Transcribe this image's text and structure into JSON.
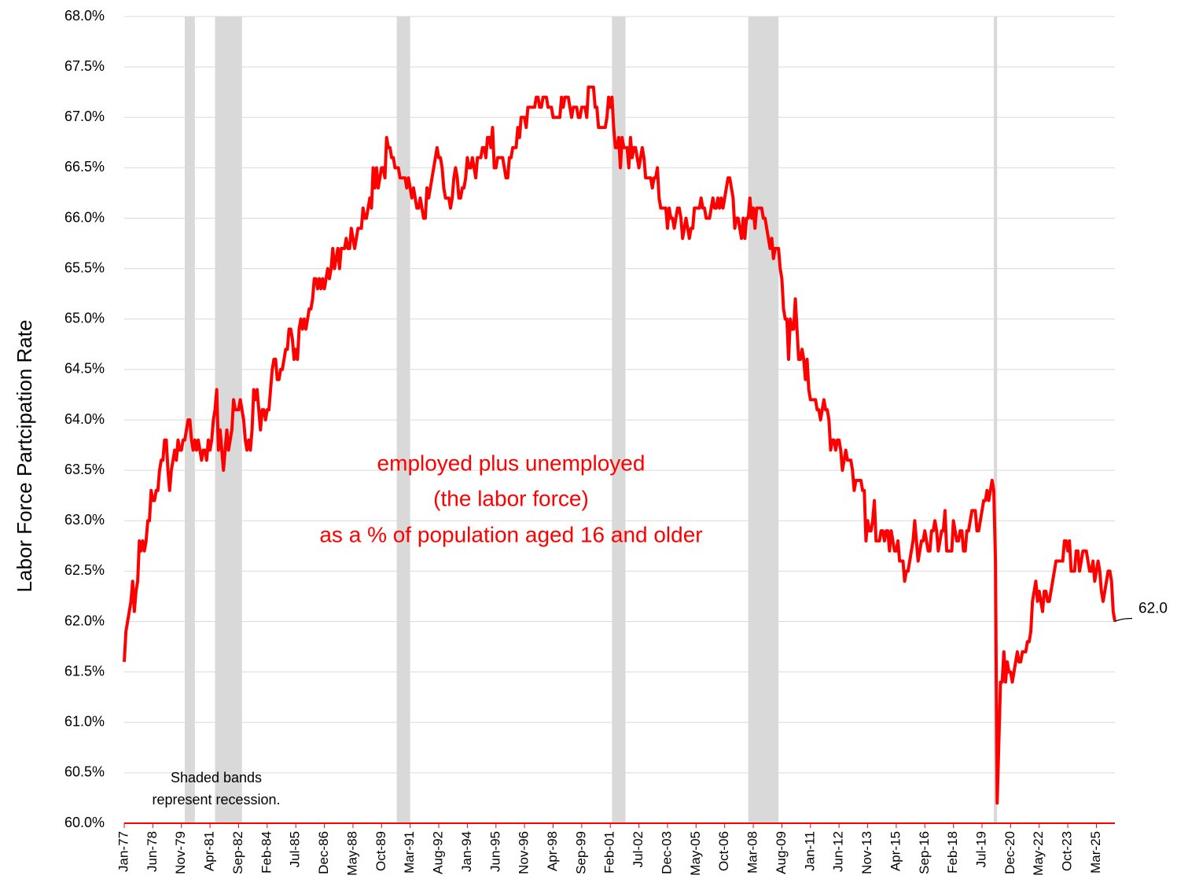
{
  "chart_data": {
    "type": "line",
    "y_label": "Labor Force Partcipation Rate",
    "annotations": [
      "employed plus unemployed",
      "(the labor force)",
      "as a % of population aged 16 and older"
    ],
    "recession_note": [
      "Shaded bands",
      "represent recession."
    ],
    "last_value_label": "62.0",
    "color": "#ff0000",
    "recession_color": "#d9d9d9",
    "grid": true,
    "ylim": [
      60,
      68
    ],
    "yticks": [
      {
        "value": 60,
        "label": "60.0%"
      },
      {
        "value": 60.5,
        "label": "60.5%"
      },
      {
        "value": 61,
        "label": "61.0%"
      },
      {
        "value": 61.5,
        "label": "61.5%"
      },
      {
        "value": 62,
        "label": "62.0%"
      },
      {
        "value": 62.5,
        "label": "62.5%"
      },
      {
        "value": 63,
        "label": "63.0%"
      },
      {
        "value": 63.5,
        "label": "63.5%"
      },
      {
        "value": 64,
        "label": "64.0%"
      },
      {
        "value": 64.5,
        "label": "64.5%"
      },
      {
        "value": 65,
        "label": "65.0%"
      },
      {
        "value": 65.5,
        "label": "65.5%"
      },
      {
        "value": 66,
        "label": "66.0%"
      },
      {
        "value": 66.5,
        "label": "66.5%"
      },
      {
        "value": 67,
        "label": "67.0%"
      },
      {
        "value": 67.5,
        "label": "67.5%"
      },
      {
        "value": 68,
        "label": "68.0%"
      }
    ],
    "recessions": [
      [
        "Jan-80",
        "Jul-80"
      ],
      [
        "Jul-81",
        "Nov-82"
      ],
      [
        "Jul-90",
        "Mar-91"
      ],
      [
        "Mar-01",
        "Nov-01"
      ],
      [
        "Dec-07",
        "Jun-09"
      ],
      [
        "Feb-20",
        "Apr-20"
      ]
    ],
    "categories": [
      "Jan-77",
      null,
      null,
      null,
      null,
      null,
      null,
      null,
      null,
      null,
      null,
      null,
      null,
      null,
      null,
      null,
      null,
      "Jun-78",
      null,
      null,
      null,
      null,
      null,
      null,
      null,
      null,
      null,
      null,
      null,
      null,
      null,
      null,
      null,
      null,
      "Nov-79",
      null,
      null,
      null,
      null,
      null,
      null,
      null,
      null,
      null,
      null,
      null,
      null,
      null,
      null,
      null,
      null,
      "Apr-81",
      null,
      null,
      null,
      null,
      null,
      null,
      null,
      null,
      null,
      null,
      null,
      null,
      null,
      null,
      null,
      null,
      "Sep-82",
      null,
      null,
      null,
      null,
      null,
      null,
      null,
      null,
      null,
      null,
      null,
      null,
      null,
      null,
      null,
      null,
      "Feb-84",
      null,
      null,
      null,
      null,
      null,
      null,
      null,
      null,
      null,
      null,
      null,
      null,
      null,
      null,
      null,
      null,
      "Jul-85",
      null,
      null,
      null,
      null,
      null,
      null,
      null,
      null,
      null,
      null,
      null,
      null,
      null,
      null,
      null,
      null,
      "Dec-86",
      null,
      null,
      null,
      null,
      null,
      null,
      null,
      null,
      null,
      null,
      null,
      null,
      null,
      null,
      null,
      null,
      "May-88",
      null,
      null,
      null,
      null,
      null,
      null,
      null,
      null,
      null,
      null,
      null,
      null,
      null,
      null,
      null,
      null,
      "Oct-89",
      null,
      null,
      null,
      null,
      null,
      null,
      null,
      null,
      null,
      null,
      null,
      null,
      null,
      null,
      null,
      null,
      "Mar-91",
      null,
      null,
      null,
      null,
      null,
      null,
      null,
      null,
      null,
      null,
      null,
      null,
      null,
      null,
      null,
      null,
      "Aug-92",
      null,
      null,
      null,
      null,
      null,
      null,
      null,
      null,
      null,
      null,
      null,
      null,
      null,
      null,
      null,
      null,
      "Jan-94",
      null,
      null,
      null,
      null,
      null,
      null,
      null,
      null,
      null,
      null,
      null,
      null,
      null,
      null,
      null,
      null,
      "Jun-95",
      null,
      null,
      null,
      null,
      null,
      null,
      null,
      null,
      null,
      null,
      null,
      null,
      null,
      null,
      null,
      null,
      "Nov-96",
      null,
      null,
      null,
      null,
      null,
      null,
      null,
      null,
      null,
      null,
      null,
      null,
      null,
      null,
      null,
      null,
      "Apr-98",
      null,
      null,
      null,
      null,
      null,
      null,
      null,
      null,
      null,
      null,
      null,
      null,
      null,
      null,
      null,
      null,
      "Sep-99",
      null,
      null,
      null,
      null,
      null,
      null,
      null,
      null,
      null,
      null,
      null,
      null,
      null,
      null,
      null,
      null,
      "Feb-01",
      null,
      null,
      null,
      null,
      null,
      null,
      null,
      null,
      null,
      null,
      null,
      null,
      null,
      null,
      null,
      null,
      "Jul-02",
      null,
      null,
      null,
      null,
      null,
      null,
      null,
      null,
      null,
      null,
      null,
      null,
      null,
      null,
      null,
      null,
      "Dec-03",
      null,
      null,
      null,
      null,
      null,
      null,
      null,
      null,
      null,
      null,
      null,
      null,
      null,
      null,
      null,
      null,
      "May-05",
      null,
      null,
      null,
      null,
      null,
      null,
      null,
      null,
      null,
      null,
      null,
      null,
      null,
      null,
      null,
      null,
      "Oct-06",
      null,
      null,
      null,
      null,
      null,
      null,
      null,
      null,
      null,
      null,
      null,
      null,
      null,
      null,
      null,
      null,
      "Mar-08",
      null,
      null,
      null,
      null,
      null,
      null,
      null,
      null,
      null,
      null,
      null,
      null,
      null,
      null,
      null,
      null,
      "Aug-09",
      null,
      null,
      null,
      null,
      null,
      null,
      null,
      null,
      null,
      null,
      null,
      null,
      null,
      null,
      null,
      null,
      "Jan-11",
      null,
      null,
      null,
      null,
      null,
      null,
      null,
      null,
      null,
      null,
      null,
      null,
      null,
      null,
      null,
      null,
      "Jun-12",
      null,
      null,
      null,
      null,
      null,
      null,
      null,
      null,
      null,
      null,
      null,
      null,
      null,
      null,
      null,
      null,
      "Nov-13",
      null,
      null,
      null,
      null,
      null,
      null,
      null,
      null,
      null,
      null,
      null,
      null,
      null,
      null,
      null,
      null,
      "Apr-15",
      null,
      null,
      null,
      null,
      null,
      null,
      null,
      null,
      null,
      null,
      null,
      null,
      null,
      null,
      null,
      null,
      "Sep-16",
      null,
      null,
      null,
      null,
      null,
      null,
      null,
      null,
      null,
      null,
      null,
      null,
      null,
      null,
      null,
      null,
      "Feb-18",
      null,
      null,
      null,
      null,
      null,
      null,
      null,
      null,
      null,
      null,
      null,
      null,
      null,
      null,
      null,
      null,
      "Jul-19",
      null,
      null,
      null,
      null,
      null,
      null,
      null,
      null,
      null,
      null,
      null,
      null,
      null,
      null,
      null,
      null,
      "Dec-20",
      null,
      null,
      null,
      null,
      null,
      null,
      null,
      null,
      null,
      null,
      null,
      null,
      null,
      null,
      null,
      null,
      "May-22",
      null,
      null,
      null,
      null,
      null,
      null,
      null,
      null,
      null,
      null,
      null,
      null,
      null,
      null,
      null,
      null,
      "Oct-23",
      null,
      null,
      null,
      null,
      null,
      null,
      null,
      null,
      null,
      null,
      null,
      null,
      null,
      null,
      null,
      null,
      "Mar-25",
      null,
      null,
      null,
      null,
      null,
      null,
      null,
      null,
      null,
      null,
      null
    ],
    "values": [
      61.6,
      61.9,
      62.0,
      62.1,
      62.2,
      62.4,
      62.1,
      62.3,
      62.4,
      62.8,
      62.7,
      62.8,
      62.7,
      62.8,
      63.0,
      63.0,
      63.3,
      63.2,
      63.2,
      63.3,
      63.3,
      63.5,
      63.6,
      63.6,
      63.8,
      63.8,
      63.5,
      63.3,
      63.5,
      63.6,
      63.7,
      63.6,
      63.8,
      63.7,
      63.7,
      63.8,
      63.8,
      63.9,
      64.0,
      64.0,
      63.8,
      63.7,
      63.8,
      63.7,
      63.8,
      63.7,
      63.6,
      63.7,
      63.7,
      63.6,
      63.8,
      63.7,
      63.8,
      64.0,
      64.1,
      64.3,
      63.7,
      63.9,
      63.7,
      63.5,
      63.7,
      63.9,
      63.7,
      63.8,
      63.9,
      64.2,
      64.1,
      64.1,
      64.1,
      64.2,
      64.1,
      64.0,
      63.8,
      63.7,
      63.8,
      63.7,
      63.9,
      64.3,
      64.2,
      64.3,
      64.1,
      63.9,
      64.1,
      64.1,
      64.0,
      64.1,
      64.1,
      64.3,
      64.5,
      64.6,
      64.6,
      64.4,
      64.4,
      64.5,
      64.5,
      64.6,
      64.7,
      64.7,
      64.9,
      64.9,
      64.8,
      64.6,
      64.7,
      64.6,
      64.9,
      65.0,
      64.9,
      65.0,
      64.9,
      65.0,
      65.1,
      65.1,
      65.2,
      65.4,
      65.4,
      65.3,
      65.4,
      65.3,
      65.4,
      65.3,
      65.4,
      65.5,
      65.4,
      65.5,
      65.7,
      65.5,
      65.6,
      65.7,
      65.5,
      65.7,
      65.7,
      65.7,
      65.8,
      65.7,
      65.7,
      65.9,
      65.8,
      65.7,
      65.8,
      65.9,
      65.9,
      65.9,
      66.1,
      66.0,
      66.0,
      66.1,
      66.2,
      66.1,
      66.5,
      66.3,
      66.5,
      66.3,
      66.4,
      66.5,
      66.5,
      66.4,
      66.8,
      66.7,
      66.7,
      66.6,
      66.6,
      66.5,
      66.5,
      66.5,
      66.4,
      66.4,
      66.4,
      66.4,
      66.3,
      66.4,
      66.3,
      66.2,
      66.3,
      66.2,
      66.1,
      66.1,
      66.2,
      66.1,
      66.0,
      66.0,
      66.3,
      66.2,
      66.3,
      66.4,
      66.5,
      66.6,
      66.7,
      66.6,
      66.6,
      66.5,
      66.3,
      66.2,
      66.2,
      66.2,
      66.1,
      66.2,
      66.4,
      66.5,
      66.4,
      66.2,
      66.2,
      66.3,
      66.3,
      66.4,
      66.6,
      66.5,
      66.5,
      66.6,
      66.5,
      66.4,
      66.6,
      66.6,
      66.6,
      66.7,
      66.7,
      66.6,
      66.8,
      66.8,
      66.7,
      66.9,
      66.5,
      66.5,
      66.6,
      66.6,
      66.6,
      66.6,
      66.5,
      66.4,
      66.4,
      66.6,
      66.6,
      66.7,
      66.7,
      66.7,
      66.9,
      66.8,
      67.0,
      67.0,
      67.0,
      66.9,
      67.1,
      67.1,
      67.1,
      67.1,
      67.1,
      67.2,
      67.2,
      67.1,
      67.1,
      67.2,
      67.2,
      67.2,
      67.1,
      67.1,
      67.1,
      67.0,
      67.0,
      67.0,
      67.0,
      67.0,
      67.2,
      67.1,
      67.2,
      67.2,
      67.2,
      67.1,
      67.0,
      67.1,
      67.1,
      67.1,
      67.0,
      67.0,
      67.1,
      67.1,
      67.1,
      67.0,
      67.3,
      67.3,
      67.3,
      67.3,
      67.1,
      67.1,
      66.9,
      66.9,
      66.9,
      66.9,
      66.9,
      67.0,
      67.2,
      67.1,
      67.2,
      66.9,
      66.7,
      66.7,
      66.8,
      66.5,
      66.8,
      66.7,
      66.7,
      66.7,
      66.5,
      66.8,
      66.6,
      66.7,
      66.7,
      66.6,
      66.5,
      66.6,
      66.7,
      66.6,
      66.4,
      66.4,
      66.4,
      66.4,
      66.3,
      66.4,
      66.4,
      66.5,
      66.2,
      66.1,
      66.1,
      66.1,
      66.1,
      65.9,
      66.1,
      66.0,
      66.0,
      65.9,
      66.0,
      66.1,
      66.1,
      66.0,
      65.8,
      65.9,
      66.0,
      65.9,
      65.8,
      65.9,
      65.9,
      66.1,
      66.1,
      66.1,
      66.1,
      66.2,
      66.1,
      66.1,
      66.0,
      66.0,
      66.0,
      66.1,
      66.2,
      66.1,
      66.1,
      66.2,
      66.1,
      66.2,
      66.1,
      66.2,
      66.3,
      66.4,
      66.4,
      66.3,
      66.2,
      65.9,
      66.0,
      66.0,
      65.9,
      65.8,
      66.0,
      65.8,
      66.0,
      66.0,
      66.2,
      66.0,
      66.1,
      65.9,
      66.1,
      66.1,
      66.1,
      66.1,
      66.0,
      66.0,
      65.9,
      65.8,
      65.7,
      65.8,
      65.6,
      65.7,
      65.7,
      65.7,
      65.5,
      65.4,
      65.1,
      65.0,
      65.0,
      64.6,
      65.0,
      64.9,
      64.9,
      65.2,
      64.9,
      64.6,
      64.6,
      64.7,
      64.6,
      64.4,
      64.6,
      64.3,
      64.2,
      64.2,
      64.2,
      64.2,
      64.1,
      64.1,
      64.0,
      64.1,
      64.2,
      64.1,
      64.1,
      64.0,
      63.7,
      63.8,
      63.8,
      63.7,
      63.8,
      63.8,
      63.7,
      63.5,
      63.6,
      63.7,
      63.6,
      63.6,
      63.6,
      63.5,
      63.3,
      63.4,
      63.4,
      63.4,
      63.4,
      63.3,
      63.3,
      62.8,
      63.0,
      62.9,
      62.9,
      63.0,
      63.2,
      62.8,
      62.8,
      62.8,
      62.9,
      62.9,
      62.8,
      62.9,
      62.9,
      62.7,
      62.9,
      62.8,
      62.7,
      62.7,
      62.8,
      62.6,
      62.6,
      62.6,
      62.4,
      62.5,
      62.5,
      62.6,
      62.7,
      62.8,
      63.0,
      62.8,
      62.6,
      62.7,
      62.8,
      62.8,
      62.9,
      62.8,
      62.7,
      62.7,
      62.9,
      62.9,
      63.0,
      62.9,
      62.7,
      62.8,
      62.9,
      62.9,
      63.1,
      62.7,
      62.7,
      62.7,
      62.7,
      63.0,
      62.9,
      62.8,
      62.8,
      62.9,
      62.9,
      62.7,
      62.7,
      62.9,
      62.9,
      63.0,
      63.1,
      63.1,
      63.1,
      62.9,
      62.9,
      63.0,
      63.1,
      63.2,
      63.2,
      63.3,
      63.2,
      63.3,
      63.4,
      63.3,
      62.6,
      60.2,
      60.8,
      61.4,
      61.4,
      61.7,
      61.4,
      61.6,
      61.5,
      61.5,
      61.4,
      61.5,
      61.6,
      61.7,
      61.6,
      61.6,
      61.7,
      61.7,
      61.7,
      61.8,
      61.8,
      61.9,
      62.2,
      62.3,
      62.4,
      62.2,
      62.3,
      62.2,
      62.1,
      62.3,
      62.3,
      62.2,
      62.2,
      62.3,
      62.4,
      62.5,
      62.6,
      62.6,
      62.6,
      62.6,
      62.6,
      62.8,
      62.8,
      62.7,
      62.8,
      62.5,
      62.5,
      62.5,
      62.7,
      62.7,
      62.5,
      62.6,
      62.7,
      62.7,
      62.7,
      62.6,
      62.5,
      62.5,
      62.6,
      62.4,
      62.5,
      62.6,
      62.5,
      62.3,
      62.2,
      62.3,
      62.4,
      62.5,
      62.5,
      62.4,
      62.1,
      62.0
    ]
  }
}
